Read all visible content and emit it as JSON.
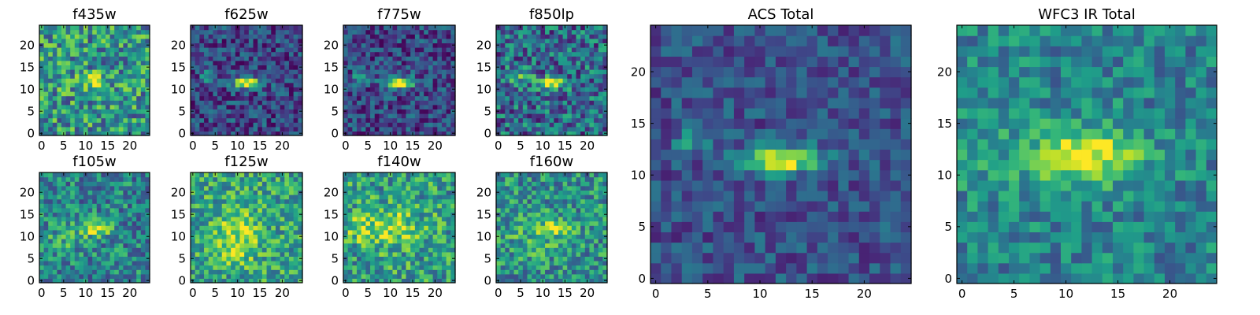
{
  "figure": {
    "background": "#ffffff",
    "colormap": "viridis",
    "colormap_stops": [
      "#440154",
      "#482878",
      "#3e4989",
      "#31688e",
      "#26828e",
      "#1f9e89",
      "#35b779",
      "#6ece58",
      "#b5de2b",
      "#fde725"
    ]
  },
  "chart_data": [
    {
      "type": "heatmap",
      "title": "f435w",
      "grid_size": 25,
      "xticks": [
        "0",
        "5",
        "10",
        "15",
        "20"
      ],
      "yticks": [
        "0",
        "5",
        "10",
        "15",
        "20"
      ],
      "source": {
        "x": 12,
        "y": 12,
        "sx": 1.8,
        "sy": 1.0,
        "amp": 0.5
      },
      "source2": {
        "x": 4,
        "y": 12,
        "sx": 1.8,
        "sy": 1.2,
        "amp": 0.15
      },
      "background_level": 0.52,
      "noise": 0.32,
      "seed": 11
    },
    {
      "type": "heatmap",
      "title": "f625w",
      "grid_size": 25,
      "xticks": [
        "0",
        "5",
        "10",
        "15",
        "20"
      ],
      "yticks": [
        "0",
        "5",
        "10",
        "15",
        "20"
      ],
      "source": {
        "x": 12,
        "y": 11.5,
        "sx": 2.2,
        "sy": 0.9,
        "amp": 0.85
      },
      "source2": {
        "x": 3.5,
        "y": 13,
        "sx": 1.2,
        "sy": 1.0,
        "amp": 0.35
      },
      "background_level": 0.22,
      "noise": 0.22,
      "seed": 23
    },
    {
      "type": "heatmap",
      "title": "f775w",
      "grid_size": 25,
      "xticks": [
        "0",
        "5",
        "10",
        "15",
        "20"
      ],
      "yticks": [
        "0",
        "5",
        "10",
        "15",
        "20"
      ],
      "source": {
        "x": 12,
        "y": 11.5,
        "sx": 2.3,
        "sy": 0.9,
        "amp": 0.85
      },
      "source2": {
        "x": 3.5,
        "y": 13,
        "sx": 1.2,
        "sy": 1.0,
        "amp": 0.35
      },
      "background_level": 0.22,
      "noise": 0.22,
      "seed": 37
    },
    {
      "type": "heatmap",
      "title": "f850lp",
      "grid_size": 25,
      "xticks": [
        "0",
        "5",
        "10",
        "15",
        "20"
      ],
      "yticks": [
        "0",
        "5",
        "10",
        "15",
        "20"
      ],
      "source": {
        "x": 12,
        "y": 11.5,
        "sx": 2.2,
        "sy": 0.9,
        "amp": 0.65
      },
      "source2": {
        "x": 5,
        "y": 13,
        "sx": 2.0,
        "sy": 1.2,
        "amp": 0.25
      },
      "background_level": 0.35,
      "noise": 0.3,
      "seed": 41
    },
    {
      "type": "heatmap",
      "title": "f105w",
      "grid_size": 25,
      "xticks": [
        "0",
        "5",
        "10",
        "15",
        "20"
      ],
      "yticks": [
        "0",
        "5",
        "10",
        "15",
        "20"
      ],
      "source": {
        "x": 12.5,
        "y": 12,
        "sx": 2.3,
        "sy": 1.1,
        "amp": 0.55
      },
      "source2": {
        "x": 6,
        "y": 10,
        "sx": 4.0,
        "sy": 2.5,
        "amp": 0.15
      },
      "background_level": 0.45,
      "noise": 0.26,
      "seed": 53
    },
    {
      "type": "heatmap",
      "title": "f125w",
      "grid_size": 25,
      "xticks": [
        "0",
        "5",
        "10",
        "15",
        "20"
      ],
      "yticks": [
        "0",
        "5",
        "10",
        "15",
        "20"
      ],
      "source": {
        "x": 10,
        "y": 11.5,
        "sx": 3.5,
        "sy": 3.5,
        "amp": 0.3
      },
      "source2": {
        "x": 10,
        "y": 6,
        "sx": 2.0,
        "sy": 2.0,
        "amp": 0.2
      },
      "background_level": 0.58,
      "noise": 0.26,
      "seed": 67
    },
    {
      "type": "heatmap",
      "title": "f140w",
      "grid_size": 25,
      "xticks": [
        "0",
        "5",
        "10",
        "15",
        "20"
      ],
      "yticks": [
        "0",
        "5",
        "10",
        "15",
        "20"
      ],
      "source": {
        "x": 10,
        "y": 12,
        "sx": 5.0,
        "sy": 3.0,
        "amp": 0.32
      },
      "source2": {
        "x": 3,
        "y": 12,
        "sx": 2.0,
        "sy": 2.0,
        "amp": 0.2
      },
      "background_level": 0.55,
      "noise": 0.28,
      "seed": 79
    },
    {
      "type": "heatmap",
      "title": "f160w",
      "grid_size": 25,
      "xticks": [
        "0",
        "5",
        "10",
        "15",
        "20"
      ],
      "yticks": [
        "0",
        "5",
        "10",
        "15",
        "20"
      ],
      "source": {
        "x": 13,
        "y": 12,
        "sx": 2.2,
        "sy": 1.1,
        "amp": 0.45
      },
      "source2": {
        "x": 8,
        "y": 10,
        "sx": 4.0,
        "sy": 3.0,
        "amp": 0.15
      },
      "background_level": 0.5,
      "noise": 0.26,
      "seed": 97
    },
    {
      "type": "heatmap",
      "title": "ACS Total",
      "grid_size": 25,
      "xticks": [
        "0",
        "5",
        "10",
        "15",
        "20"
      ],
      "yticks": [
        "0",
        "5",
        "10",
        "15",
        "20"
      ],
      "source": {
        "x": 12,
        "y": 11.5,
        "sx": 2.6,
        "sy": 0.85,
        "amp": 0.8
      },
      "source2": {
        "x": 3.5,
        "y": 13.5,
        "sx": 1.1,
        "sy": 0.9,
        "amp": 0.3
      },
      "background_level": 0.25,
      "noise": 0.16,
      "seed": 113
    },
    {
      "type": "heatmap",
      "title": "WFC3 IR Total",
      "grid_size": 25,
      "xticks": [
        "0",
        "5",
        "10",
        "15",
        "20"
      ],
      "yticks": [
        "0",
        "5",
        "10",
        "15",
        "20"
      ],
      "source": {
        "x": 12.5,
        "y": 12,
        "sx": 3.2,
        "sy": 1.8,
        "amp": 0.5
      },
      "source2": {
        "x": 6,
        "y": 11.5,
        "sx": 6.0,
        "sy": 2.5,
        "amp": 0.12
      },
      "background_level": 0.45,
      "noise": 0.2,
      "seed": 131
    }
  ]
}
